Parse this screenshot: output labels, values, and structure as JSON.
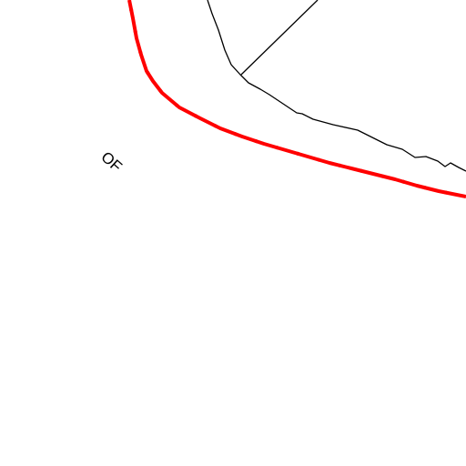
{
  "map": {
    "labels": {
      "region": "OF"
    },
    "colors": {
      "background": "#ffffff",
      "boundary_red": "#ff0000",
      "boundary_dash": "#000000",
      "line": "#000000"
    }
  }
}
